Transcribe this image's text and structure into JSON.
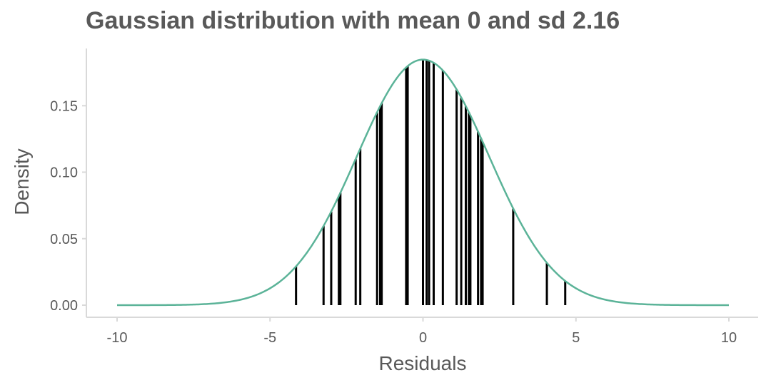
{
  "chart_data": {
    "type": "line",
    "title": "Gaussian distribution with mean 0 and sd 2.16",
    "xlabel": "Residuals",
    "ylabel": "Density",
    "xlim": [
      -10,
      10
    ],
    "ylim": [
      0,
      0.185
    ],
    "xticks": [
      -10,
      -5,
      0,
      5,
      10
    ],
    "xtick_labels": [
      "-10",
      "-5",
      "0",
      "5",
      "10"
    ],
    "yticks": [
      0,
      0.05,
      0.1,
      0.15
    ],
    "ytick_labels": [
      "0.00",
      "0.05",
      "0.10",
      "0.15"
    ],
    "distribution": {
      "mean": 0,
      "sd": 2.16
    },
    "curve_color": "#5BB398",
    "rug_color": "#000000",
    "axis_color": "#D9D9D9",
    "residuals": [
      -4.15,
      -3.25,
      -3.0,
      -2.75,
      -2.7,
      -2.2,
      -2.05,
      -1.5,
      -1.4,
      -1.35,
      -0.55,
      -0.5,
      0.0,
      0.12,
      0.2,
      0.35,
      0.65,
      1.1,
      1.25,
      1.4,
      1.5,
      1.55,
      1.8,
      1.9,
      1.95,
      2.95,
      4.05,
      4.65
    ],
    "grid": false,
    "legend": "none"
  }
}
